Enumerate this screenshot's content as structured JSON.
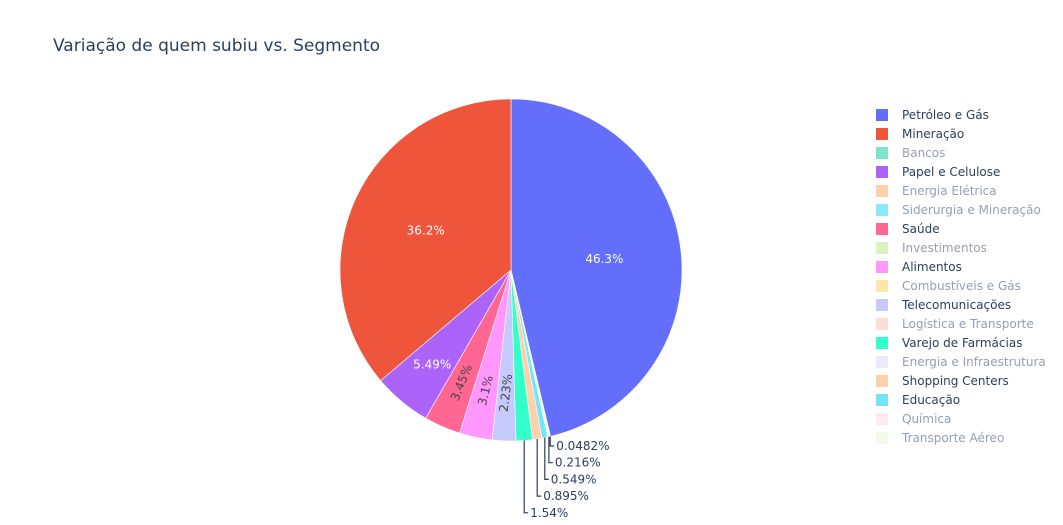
{
  "chart_data": {
    "type": "pie",
    "title": "Variação de quem subiu vs. Segmento",
    "slices": [
      {
        "name": "Petróleo e Gás",
        "value": 46.3,
        "label": "46.3%",
        "color": "#636efa",
        "visible": true
      },
      {
        "name": "Mineração",
        "value": 36.2,
        "label": "36.2%",
        "color": "#ef553b",
        "visible": true
      },
      {
        "name": "Bancos",
        "value": 0,
        "label": "",
        "color": "#00cc96",
        "visible": false
      },
      {
        "name": "Papel e Celulose",
        "value": 5.49,
        "label": "5.49%",
        "color": "#ab63fa",
        "visible": true
      },
      {
        "name": "Energia Elétrica",
        "value": 0,
        "label": "",
        "color": "#ffa15a",
        "visible": false
      },
      {
        "name": "Siderurgia e Mineração",
        "value": 0,
        "label": "",
        "color": "#19d3f3",
        "visible": false
      },
      {
        "name": "Saúde",
        "value": 3.45,
        "label": "3.45%",
        "color": "#ff6692",
        "visible": true
      },
      {
        "name": "Investimentos",
        "value": 0,
        "label": "",
        "color": "#b6e880",
        "visible": false
      },
      {
        "name": "Alimentos",
        "value": 3.1,
        "label": "3.1%",
        "color": "#ff97ff",
        "visible": true
      },
      {
        "name": "Combustíveis e Gás",
        "value": 0,
        "label": "",
        "color": "#fecb52",
        "visible": false
      },
      {
        "name": "Telecomunicações",
        "value": 2.23,
        "label": "2.23%",
        "color": "#c6c9fb",
        "visible": true
      },
      {
        "name": "Logística e Transporte",
        "value": 0,
        "label": "",
        "color": "#f9bbb0",
        "visible": false
      },
      {
        "name": "Varejo de Farmácias",
        "value": 1.54,
        "label": "1.54%",
        "color": "#33ffcc",
        "visible": true
      },
      {
        "name": "Energia e Infraestrutura",
        "value": 0,
        "label": "",
        "color": "#ddd0fd",
        "visible": false
      },
      {
        "name": "Shopping Centers",
        "value": 0.895,
        "label": "0.895%",
        "color": "#ffd0ac",
        "visible": true
      },
      {
        "name": "Educação",
        "value": 0.549,
        "label": "0.549%",
        "color": "#75e5f8",
        "visible": true
      },
      {
        "name": "Química",
        "value": 0,
        "label": "",
        "color": "#ffd6e3",
        "visible": false
      },
      {
        "name": "Transporte Aéreo",
        "value": 0.216,
        "label": "0.216%",
        "color": "#e8f8da",
        "visible": false
      },
      {
        "name": "",
        "value": 0.0482,
        "label": "0.0482%",
        "color": "#ef553b",
        "visible": true
      }
    ],
    "legend_placement": "right",
    "sort": "clockwise-from-top"
  }
}
